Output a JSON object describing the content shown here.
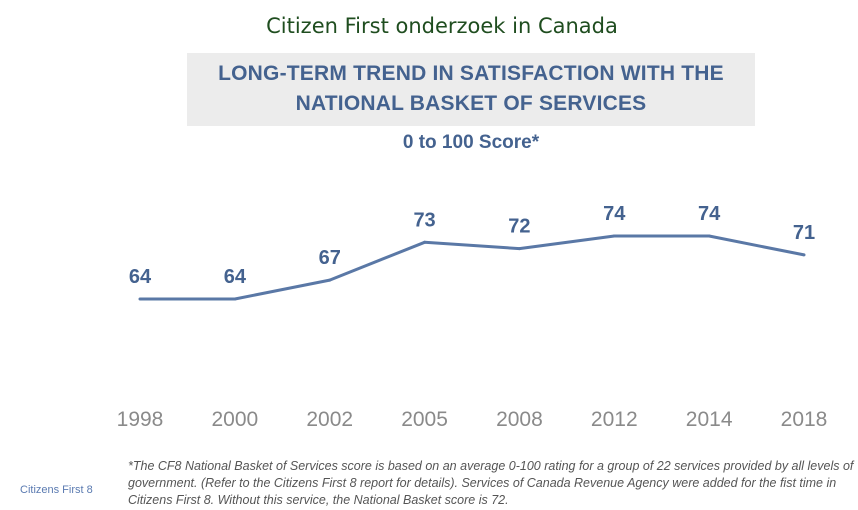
{
  "page": {
    "slide_title": "Citizen First onderzoek in Canada",
    "source_label": "Citizens First 8",
    "footnote": "*The CF8 National Basket of Services score is based on an average 0-100 rating for a group of 22 services provided by all levels of government. (Refer to the Citizens First 8 report for details). Services of Canada Revenue Agency were added for the fist time in Citizens First 8. Without this service, the National Basket score is 72."
  },
  "colors": {
    "line": "#5a78a6",
    "value_label": "#44628f",
    "axis_label": "#8a8a8a",
    "title": "#44628f",
    "title_band": "#ececec",
    "slide_title": "#1f4d1f"
  },
  "chart_data": {
    "type": "line",
    "title": "LONG-TERM TREND IN SATISFACTION WITH THE NATIONAL BASKET OF SERVICES",
    "title_lines": [
      "LONG-TERM TREND IN SATISFACTION WITH THE",
      "NATIONAL BASKET OF SERVICES"
    ],
    "subtitle": "0 to 100 Score*",
    "categories": [
      "1998",
      "2000",
      "2002",
      "2005",
      "2008",
      "2012",
      "2014",
      "2018"
    ],
    "series": [
      {
        "values": [
          64,
          64,
          67,
          73,
          72,
          74,
          74,
          71
        ]
      }
    ],
    "data_labels": true,
    "grid": false,
    "legend": "none"
  }
}
